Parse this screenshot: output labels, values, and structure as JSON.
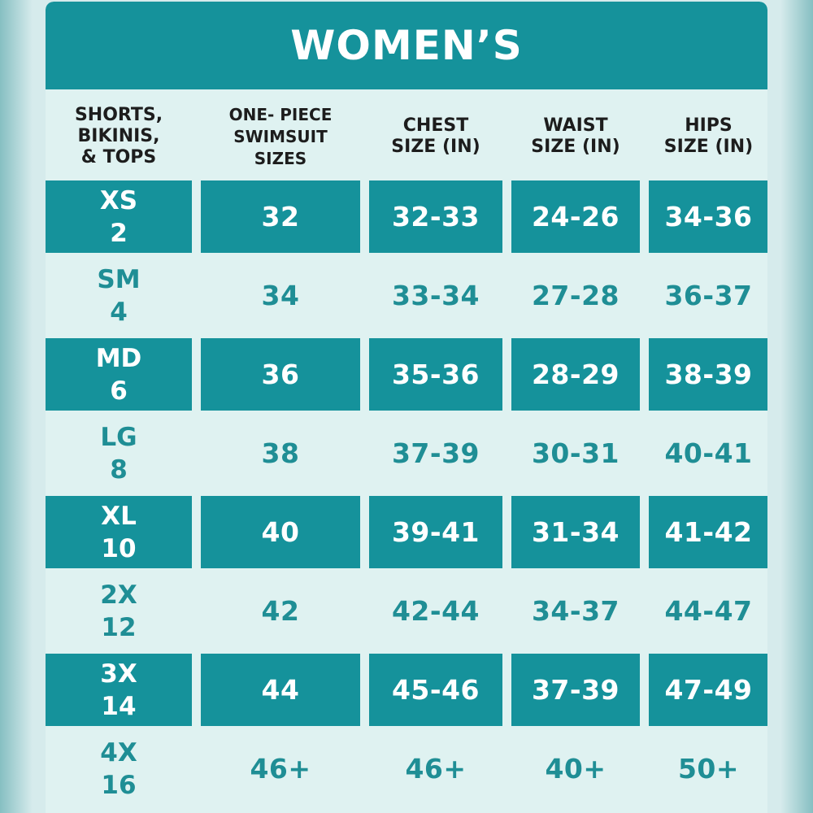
{
  "title": "WOMEN’S",
  "chart_data": {
    "type": "table",
    "title": "WOMEN’S",
    "columns": [
      "SHORTS,\nBIKINIS,\n& TOPS",
      "ONE- PIECE\nSWIMSUIT\nSIZES",
      "CHEST\nSIZE (IN)",
      "WAIST\nSIZE (IN)",
      "HIPS\nSIZE (IN)"
    ],
    "rows": [
      {
        "size": "XS",
        "num": "2",
        "swimsuit": "32",
        "chest": "32-33",
        "waist": "24-26",
        "hips": "34-36"
      },
      {
        "size": "SM",
        "num": "4",
        "swimsuit": "34",
        "chest": "33-34",
        "waist": "27-28",
        "hips": "36-37"
      },
      {
        "size": "MD",
        "num": "6",
        "swimsuit": "36",
        "chest": "35-36",
        "waist": "28-29",
        "hips": "38-39"
      },
      {
        "size": "LG",
        "num": "8",
        "swimsuit": "38",
        "chest": "37-39",
        "waist": "30-31",
        "hips": "40-41"
      },
      {
        "size": "XL",
        "num": "10",
        "swimsuit": "40",
        "chest": "39-41",
        "waist": "31-34",
        "hips": "41-42"
      },
      {
        "size": "2X",
        "num": "12",
        "swimsuit": "42",
        "chest": "42-44",
        "waist": "34-37",
        "hips": "44-47"
      },
      {
        "size": "3X",
        "num": "14",
        "swimsuit": "44",
        "chest": "45-46",
        "waist": "37-39",
        "hips": "47-49"
      },
      {
        "size": "4X",
        "num": "16",
        "swimsuit": "46+",
        "chest": "46+",
        "waist": "40+",
        "hips": "50+"
      }
    ]
  },
  "colors": {
    "teal": "#15929b",
    "light": "#dff2f1",
    "light_text": "#1f8e95",
    "header_text": "#1d1d1d"
  }
}
